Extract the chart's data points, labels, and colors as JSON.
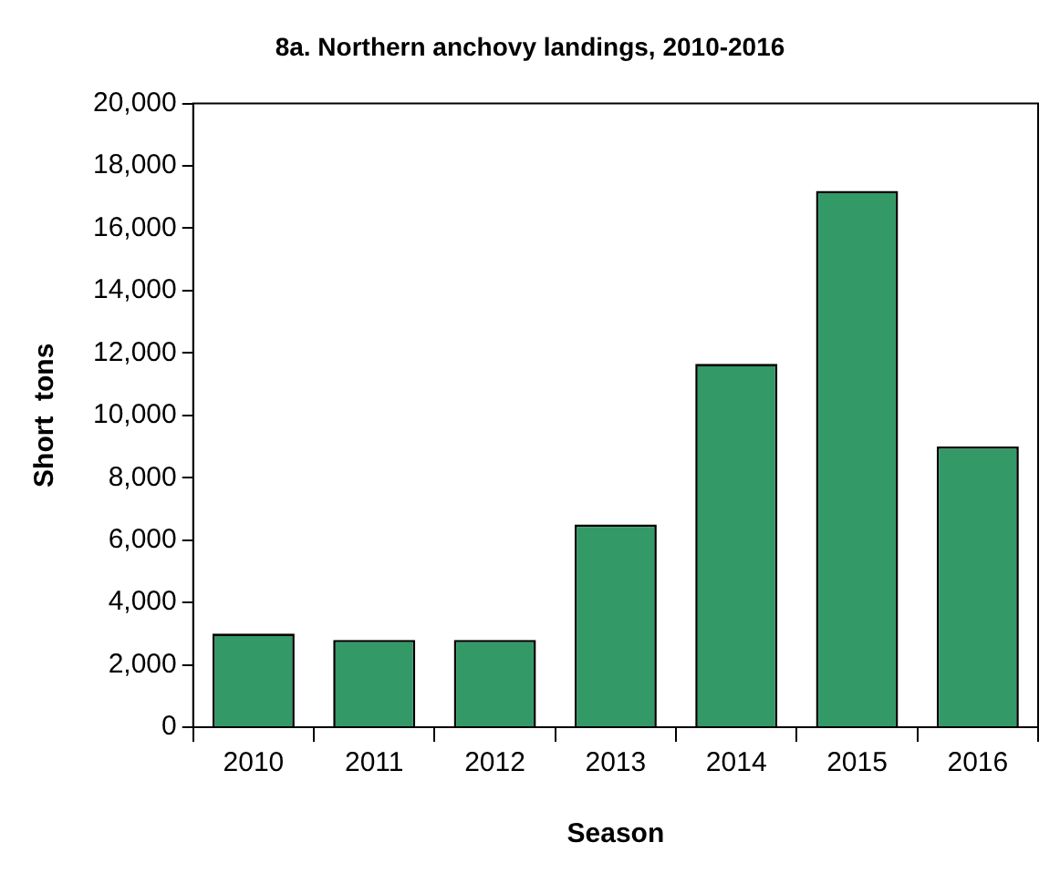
{
  "chart_data": {
    "type": "bar",
    "title": "8a. Northern anchovy landings, 2010-2016",
    "xlabel": "Season",
    "ylabel": "Short  tons",
    "categories": [
      "2010",
      "2011",
      "2012",
      "2013",
      "2014",
      "2015",
      "2016"
    ],
    "values": [
      3000,
      2800,
      2800,
      6500,
      11650,
      17200,
      9000
    ],
    "color": "#339966",
    "ylim": [
      0,
      20000
    ],
    "yticks": [
      0,
      {
        "value": 2000,
        "label": "2,000"
      },
      {
        "value": 4000,
        "label": "4,000"
      },
      {
        "value": 6000,
        "label": "6,000"
      },
      {
        "value": 8000,
        "label": "8,000"
      },
      {
        "value": 10000,
        "label": "10,000"
      },
      {
        "value": 12000,
        "label": "12,000"
      },
      {
        "value": 14000,
        "label": "14,000"
      },
      {
        "value": 16000,
        "label": "16,000"
      },
      {
        "value": 18000,
        "label": "18,000"
      },
      {
        "value": 20000,
        "label": "20,000"
      }
    ],
    "grid": false,
    "legend": false
  }
}
